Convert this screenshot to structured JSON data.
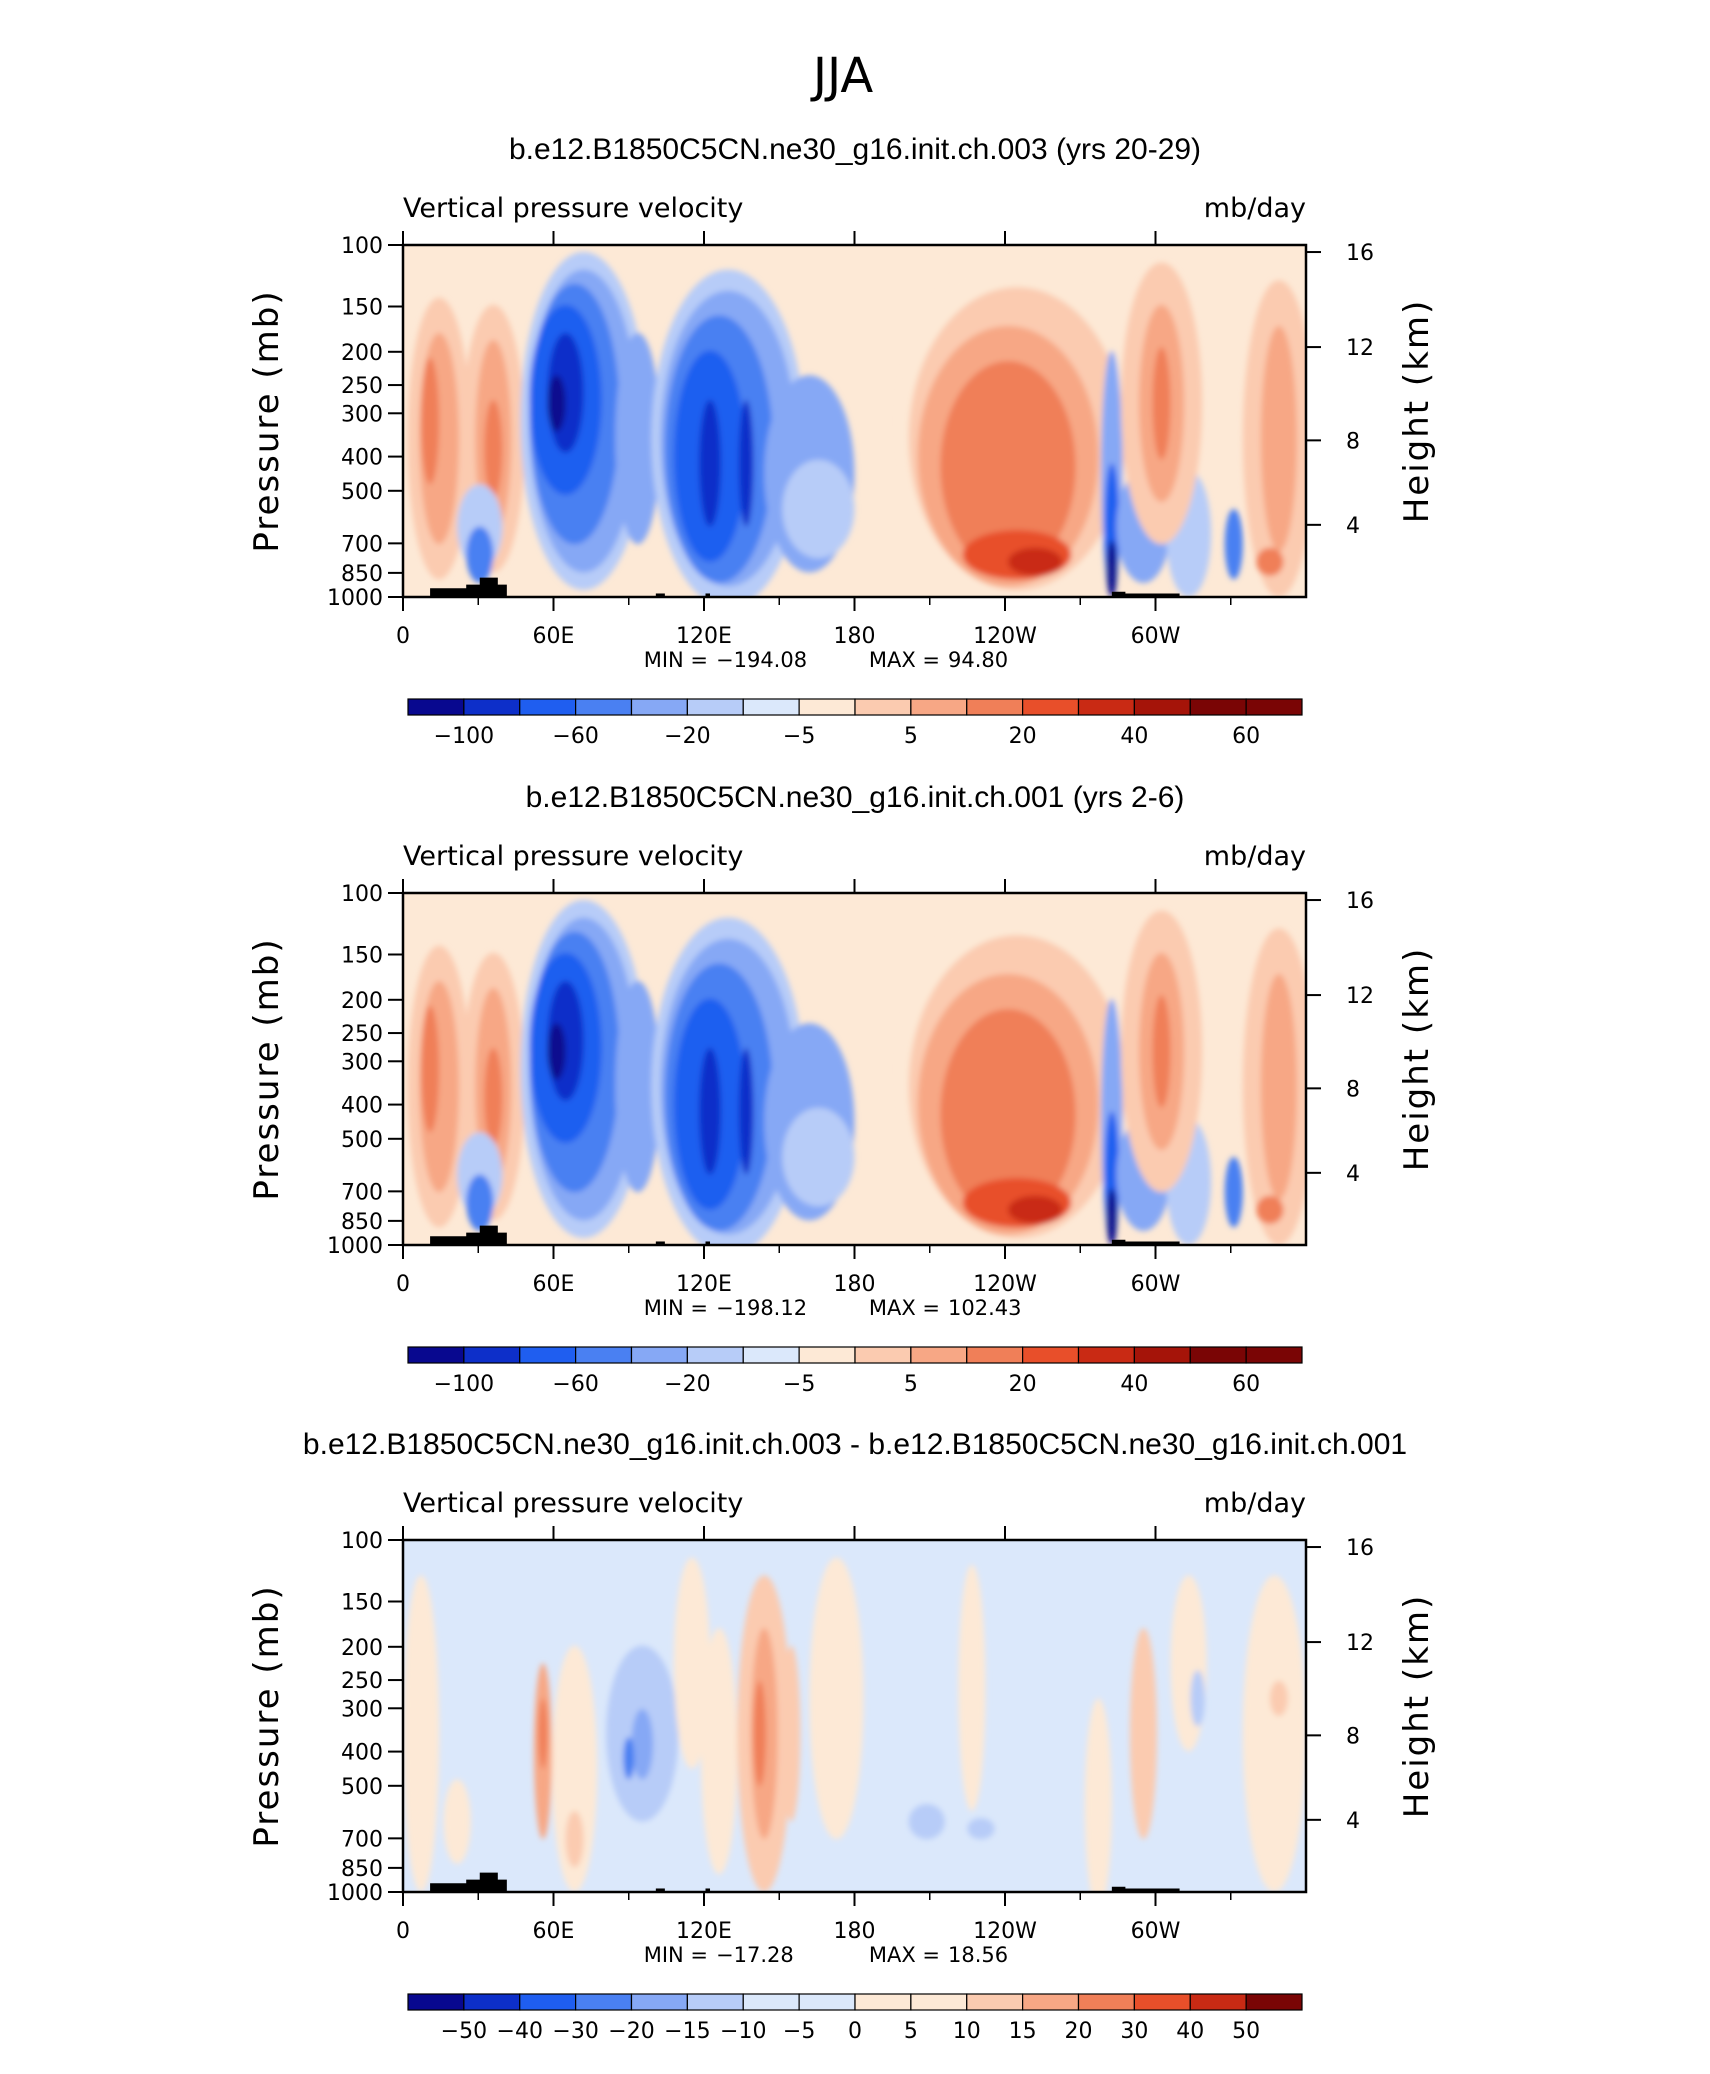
{
  "title": "JJA",
  "colors": {
    "scale11": [
      "#08088f",
      "#0d2fc9",
      "#1f5ef0",
      "#4a80f2",
      "#86a8f5",
      "#b7ccf8",
      "#dbe8fb",
      "#fde9d6",
      "#fbcbb0",
      "#f7a785",
      "#f07f58",
      "#e84f2a",
      "#c92a14",
      "#a51409",
      "#7a0505"
    ]
  },
  "chart_data": [
    {
      "type": "heatmap",
      "title": "b.e12.B1850C5CN.ne30_g16.init.ch.003 (yrs 20-29)",
      "left_label": "Vertical pressure velocity",
      "right_label": "mb/day",
      "ylabel": "Pressure (mb)",
      "ylabel_right": "Height (km)",
      "y_ticks": [
        "100",
        "150",
        "200",
        "250",
        "300",
        "400",
        "500",
        "700",
        "850",
        "1000"
      ],
      "y_ticks_right": [
        "16",
        "12",
        "8",
        "4"
      ],
      "x_ticks": [
        "0",
        "60E",
        "120E",
        "180",
        "120W",
        "60W"
      ],
      "stats": {
        "min": "−194.08",
        "max": "94.80"
      },
      "colorbar": {
        "labels": [
          "−100",
          "−60",
          "−20",
          "−5",
          "5",
          "20",
          "40",
          "60"
        ]
      },
      "mode": "full"
    },
    {
      "type": "heatmap",
      "title": "b.e12.B1850C5CN.ne30_g16.init.ch.001 (yrs 2-6)",
      "left_label": "Vertical pressure velocity",
      "right_label": "mb/day",
      "ylabel": "Pressure (mb)",
      "ylabel_right": "Height (km)",
      "y_ticks": [
        "100",
        "150",
        "200",
        "250",
        "300",
        "400",
        "500",
        "700",
        "850",
        "1000"
      ],
      "y_ticks_right": [
        "16",
        "12",
        "8",
        "4"
      ],
      "x_ticks": [
        "0",
        "60E",
        "120E",
        "180",
        "120W",
        "60W"
      ],
      "stats": {
        "min": "−198.12",
        "max": "102.43"
      },
      "colorbar": {
        "labels": [
          "−100",
          "−60",
          "−20",
          "−5",
          "5",
          "20",
          "40",
          "60"
        ]
      },
      "mode": "full"
    },
    {
      "type": "heatmap",
      "title": "b.e12.B1850C5CN.ne30_g16.init.ch.003 - b.e12.B1850C5CN.ne30_g16.init.ch.001",
      "left_label": "Vertical pressure velocity",
      "right_label": "mb/day",
      "ylabel": "Pressure (mb)",
      "ylabel_right": "Height (km)",
      "y_ticks": [
        "100",
        "150",
        "200",
        "250",
        "300",
        "400",
        "500",
        "700",
        "850",
        "1000"
      ],
      "y_ticks_right": [
        "16",
        "12",
        "8",
        "4"
      ],
      "x_ticks": [
        "0",
        "60E",
        "120E",
        "180",
        "120W",
        "60W"
      ],
      "stats": {
        "min": "−17.28",
        "max": "18.56"
      },
      "colorbar": {
        "labels": [
          "−50",
          "−40",
          "−30",
          "−20",
          "−15",
          "−10",
          "−5",
          "0",
          "5",
          "10",
          "15",
          "20",
          "30",
          "40",
          "50"
        ]
      },
      "mode": "diff"
    }
  ]
}
